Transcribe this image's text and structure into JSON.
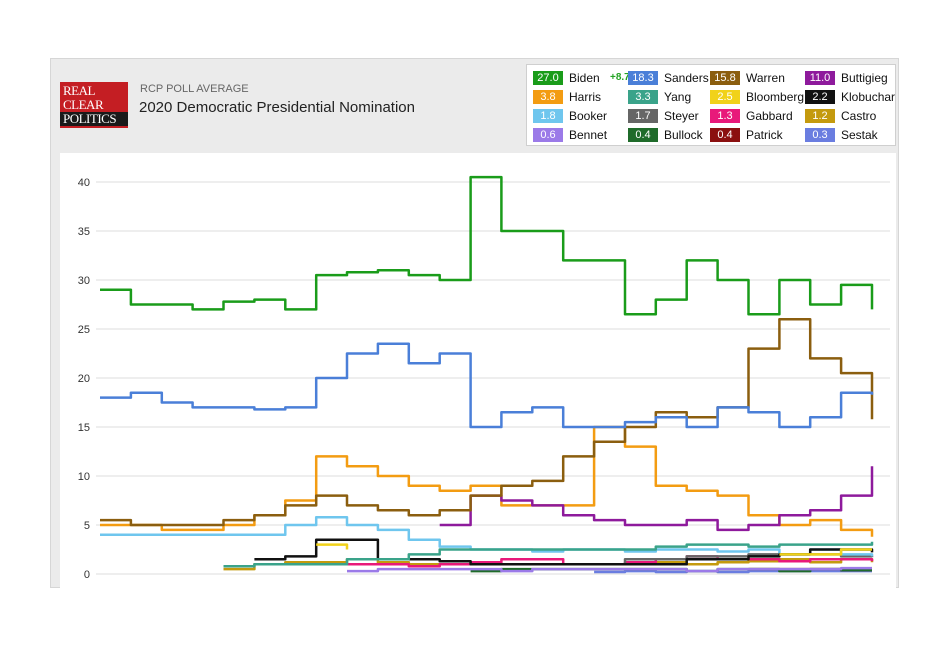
{
  "header": {
    "logo": [
      "REAL",
      "CLEAR",
      "POLITICS"
    ],
    "kicker": "RCP POLL AVERAGE",
    "title": "2020 Democratic Presidential Nomination"
  },
  "legend": [
    {
      "name": "Biden",
      "value": "27.0",
      "spread": "+8.7",
      "color": "#1a9c1a"
    },
    {
      "name": "Sanders",
      "value": "18.3",
      "color": "#4a7fd8"
    },
    {
      "name": "Warren",
      "value": "15.8",
      "color": "#8b5e0f"
    },
    {
      "name": "Buttigieg",
      "value": "11.0",
      "color": "#8e1a9c"
    },
    {
      "name": "Harris",
      "value": "3.8",
      "color": "#f39c12"
    },
    {
      "name": "Yang",
      "value": "3.3",
      "color": "#3aa38a"
    },
    {
      "name": "Bloomberg",
      "value": "2.5",
      "color": "#f1d21a"
    },
    {
      "name": "Klobuchar",
      "value": "2.2",
      "color": "#111111"
    },
    {
      "name": "Booker",
      "value": "1.8",
      "color": "#6fc6ee"
    },
    {
      "name": "Steyer",
      "value": "1.7",
      "color": "#666666"
    },
    {
      "name": "Gabbard",
      "value": "1.3",
      "color": "#e8197a"
    },
    {
      "name": "Castro",
      "value": "1.2",
      "color": "#c49a0e"
    },
    {
      "name": "Bennet",
      "value": "0.6",
      "color": "#9b7ae8"
    },
    {
      "name": "Bullock",
      "value": "0.4",
      "color": "#1f6b2a"
    },
    {
      "name": "Patrick",
      "value": "0.4",
      "color": "#8b1010"
    },
    {
      "name": "Sestak",
      "value": "0.3",
      "color": "#6a7de0"
    }
  ],
  "chart_data": {
    "type": "line",
    "ylim": [
      0,
      42
    ],
    "yticks": [
      0,
      5,
      10,
      15,
      20,
      25,
      30,
      35,
      40
    ],
    "x": [
      0,
      4,
      8,
      12,
      16,
      20,
      24,
      28,
      32,
      36,
      40,
      44,
      48,
      52,
      56,
      60,
      64,
      68,
      72,
      76,
      80,
      84,
      88,
      92,
      96,
      100
    ],
    "series": [
      {
        "name": "Biden",
        "color": "#1a9c1a",
        "values": [
          29,
          27.5,
          27.5,
          27,
          27.8,
          28,
          27,
          30.5,
          30.8,
          31,
          30.5,
          30,
          40.5,
          35,
          35,
          32,
          32,
          26.5,
          28,
          32,
          30,
          26.5,
          30,
          27.5,
          29.5,
          27
        ]
      },
      {
        "name": "Sanders",
        "color": "#4a7fd8",
        "values": [
          18,
          18.5,
          17.5,
          17,
          17,
          16.8,
          17,
          20,
          22.5,
          23.5,
          21.5,
          22.5,
          15,
          16.5,
          17,
          15,
          15,
          15.5,
          16,
          15,
          17,
          16.5,
          15,
          16,
          18.5,
          18.3
        ]
      },
      {
        "name": "Warren",
        "color": "#8b5e0f",
        "values": [
          5.5,
          5,
          5,
          5,
          5.5,
          6,
          7,
          8,
          7,
          6.5,
          6,
          6.5,
          8,
          9,
          9.5,
          12,
          13.5,
          15,
          16.5,
          16,
          17,
          23,
          26,
          22,
          20.5,
          15.8
        ]
      },
      {
        "name": "Buttigieg",
        "color": "#8e1a9c",
        "values": [
          null,
          null,
          null,
          null,
          null,
          null,
          null,
          null,
          null,
          null,
          null,
          5,
          8,
          7.5,
          7,
          6,
          5.5,
          5,
          5,
          5.5,
          4.5,
          5,
          6,
          6.5,
          8,
          11
        ]
      },
      {
        "name": "Harris",
        "color": "#f39c12",
        "values": [
          5,
          5,
          4.5,
          4.5,
          5,
          6,
          7.5,
          12,
          11,
          10,
          9,
          8.5,
          9,
          7,
          7,
          7,
          15,
          13,
          9,
          8.5,
          8,
          6,
          5,
          5.5,
          4.5,
          3.8
        ]
      },
      {
        "name": "Yang",
        "color": "#3aa38a",
        "values": [
          null,
          null,
          null,
          null,
          0.8,
          1,
          1,
          1,
          1.5,
          1.5,
          2,
          2.5,
          2.5,
          2.5,
          2.5,
          2.5,
          2.5,
          2.5,
          2.8,
          3,
          3,
          2.8,
          3,
          3,
          3,
          3.3
        ]
      },
      {
        "name": "Bloomberg",
        "color": "#f1d21a",
        "values": [
          null,
          null,
          null,
          null,
          null,
          null,
          null,
          3,
          2.5,
          null,
          null,
          null,
          null,
          null,
          null,
          null,
          null,
          null,
          null,
          null,
          null,
          null,
          2,
          2,
          2.5,
          2.5
        ]
      },
      {
        "name": "Klobuchar",
        "color": "#111111",
        "values": [
          null,
          null,
          null,
          null,
          null,
          1.5,
          1.8,
          3.5,
          3.5,
          1.5,
          1.5,
          1.3,
          1,
          1,
          1,
          1,
          1,
          1,
          1,
          1.5,
          1.5,
          1.8,
          2,
          2.5,
          2.5,
          2.2
        ]
      },
      {
        "name": "Booker",
        "color": "#6fc6ee",
        "values": [
          4,
          4,
          4,
          4,
          4,
          4,
          5,
          5.8,
          5,
          4.5,
          3.5,
          2.8,
          2.5,
          2.5,
          2.3,
          2.5,
          2.5,
          2.3,
          2.5,
          2.5,
          2.3,
          2.5,
          2,
          2.5,
          2,
          1.8
        ]
      },
      {
        "name": "Steyer",
        "color": "#666666",
        "values": [
          null,
          null,
          null,
          null,
          null,
          null,
          null,
          null,
          null,
          null,
          null,
          null,
          null,
          1,
          1,
          1,
          1,
          1.5,
          1.5,
          1.8,
          1.8,
          2,
          2,
          2,
          1.8,
          1.7
        ]
      },
      {
        "name": "Gabbard",
        "color": "#e8197a",
        "values": [
          null,
          null,
          null,
          null,
          null,
          1,
          1,
          1,
          1,
          1,
          0.8,
          1,
          1.2,
          1.5,
          1.5,
          1,
          1,
          1.2,
          1.5,
          1.8,
          1.5,
          1.5,
          1.3,
          1.5,
          1.5,
          1.3
        ]
      },
      {
        "name": "Castro",
        "color": "#c49a0e",
        "values": [
          null,
          null,
          null,
          null,
          0.5,
          1,
          1.2,
          1.2,
          1.5,
          1.2,
          1,
          1,
          1,
          1,
          1,
          1,
          1,
          1,
          1.2,
          1,
          1.2,
          1.3,
          1.5,
          1.2,
          1.5,
          1.2
        ]
      },
      {
        "name": "Bennet",
        "color": "#9b7ae8",
        "values": [
          null,
          null,
          null,
          null,
          null,
          null,
          null,
          null,
          0.3,
          0.5,
          0.5,
          0.5,
          0.5,
          0.3,
          0.5,
          0.5,
          0.5,
          0.5,
          0.5,
          0.3,
          0.5,
          0.5,
          0.5,
          0.5,
          0.6,
          0.6
        ]
      },
      {
        "name": "Bullock",
        "color": "#1f6b2a",
        "values": [
          null,
          null,
          null,
          null,
          null,
          null,
          null,
          null,
          null,
          null,
          null,
          null,
          0.3,
          0.5,
          0.5,
          0.5,
          0.5,
          0.5,
          0.5,
          0.3,
          0.5,
          0.5,
          0.3,
          0.5,
          0.4,
          0.4
        ]
      },
      {
        "name": "Patrick",
        "color": "#8b1010",
        "values": [
          null,
          null,
          null,
          null,
          null,
          null,
          null,
          null,
          null,
          null,
          null,
          null,
          null,
          null,
          null,
          null,
          null,
          null,
          null,
          null,
          null,
          0.5,
          0.5,
          0.5,
          0.4,
          0.4
        ]
      },
      {
        "name": "Sestak",
        "color": "#6a7de0",
        "values": [
          null,
          null,
          null,
          null,
          null,
          null,
          null,
          null,
          null,
          null,
          null,
          null,
          null,
          null,
          null,
          null,
          0.2,
          0.3,
          0.2,
          0.3,
          0.2,
          0.3,
          0.3,
          0.3,
          0.3,
          0.3
        ]
      }
    ],
    "xlabel": "",
    "ylabel": "",
    "grid": true
  }
}
